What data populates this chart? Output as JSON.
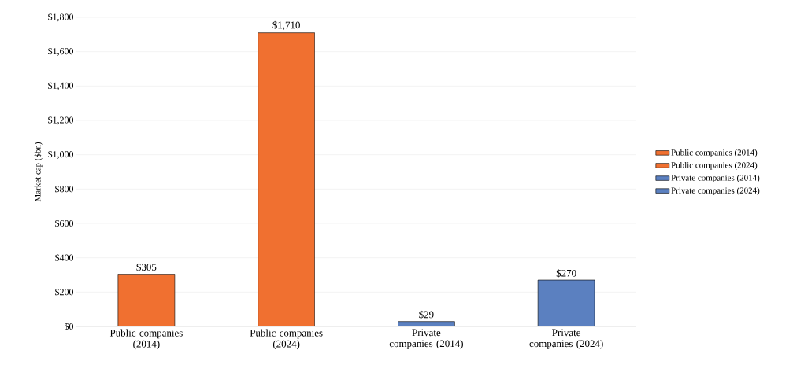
{
  "chart_data": {
    "type": "bar",
    "ylabel": "Market cap ($bn)",
    "categories": [
      "Public companies (2014)",
      "Public companies (2024)",
      "Private companies (2014)",
      "Private companies (2024)"
    ],
    "series": [
      {
        "name": "Public companies (2014)",
        "color": "#f07030",
        "values": [
          305,
          null,
          null,
          null
        ],
        "value_labels": [
          "$305",
          null,
          null,
          null
        ]
      },
      {
        "name": "Public companies (2024)",
        "color": "#f07030",
        "values": [
          null,
          1710,
          null,
          null
        ],
        "value_labels": [
          null,
          "$1,710",
          null,
          null
        ]
      },
      {
        "name": "Private companies (2014)",
        "color": "#5b80c0",
        "values": [
          null,
          null,
          29,
          null
        ],
        "value_labels": [
          null,
          null,
          "$29",
          null
        ]
      },
      {
        "name": "Private companies (2024)",
        "color": "#5b80c0",
        "values": [
          null,
          null,
          null,
          270
        ],
        "value_labels": [
          null,
          null,
          null,
          "$270"
        ]
      }
    ],
    "ylim": [
      0,
      1800
    ],
    "yticks": [
      {
        "value": 0,
        "label": "$0"
      },
      {
        "value": 200,
        "label": "$200"
      },
      {
        "value": 400,
        "label": "$400"
      },
      {
        "value": 600,
        "label": "$600"
      },
      {
        "value": 800,
        "label": "$800"
      },
      {
        "value": 1000,
        "label": "$1,000"
      },
      {
        "value": 1200,
        "label": "$1,200"
      },
      {
        "value": 1400,
        "label": "$1,400"
      },
      {
        "value": 1600,
        "label": "$1,600"
      },
      {
        "value": 1800,
        "label": "$1,800"
      }
    ],
    "grid": "y",
    "legend": "right"
  }
}
